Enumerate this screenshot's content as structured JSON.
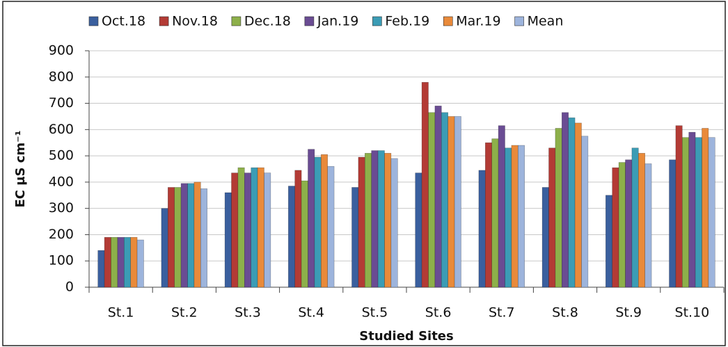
{
  "chart_data": {
    "type": "bar",
    "y_label": "EC µS cm⁻¹",
    "x_label": "Studied Sites",
    "categories": [
      "St.1",
      "St.2",
      "St.3",
      "St.4",
      "St.5",
      "St.6",
      "St.7",
      "St.8",
      "St.9",
      "St.10"
    ],
    "series": [
      {
        "name": "Oct.18",
        "color": "#3a5f9e",
        "values": [
          140,
          300,
          360,
          385,
          380,
          435,
          445,
          380,
          350,
          485
        ]
      },
      {
        "name": "Nov.18",
        "color": "#b33b35",
        "values": [
          190,
          380,
          435,
          445,
          495,
          780,
          550,
          530,
          455,
          615
        ]
      },
      {
        "name": "Dec.18",
        "color": "#8db04a",
        "values": [
          190,
          380,
          455,
          405,
          510,
          665,
          565,
          605,
          475,
          570
        ]
      },
      {
        "name": "Jan.19",
        "color": "#6a4c93",
        "values": [
          190,
          395,
          435,
          525,
          520,
          690,
          615,
          665,
          485,
          590
        ]
      },
      {
        "name": "Feb.19",
        "color": "#3b9cb5",
        "values": [
          190,
          395,
          455,
          495,
          520,
          665,
          530,
          645,
          530,
          570
        ]
      },
      {
        "name": "Mar.19",
        "color": "#e98a3a",
        "values": [
          190,
          400,
          455,
          505,
          510,
          650,
          540,
          625,
          510,
          605
        ]
      },
      {
        "name": "Mean",
        "color": "#9db4dc",
        "values": [
          180,
          375,
          435,
          460,
          490,
          650,
          540,
          575,
          470,
          570
        ]
      }
    ],
    "ylim": [
      0,
      900
    ],
    "yticks": [
      0,
      100,
      200,
      300,
      400,
      500,
      600,
      700,
      800,
      900
    ],
    "grid": true
  }
}
